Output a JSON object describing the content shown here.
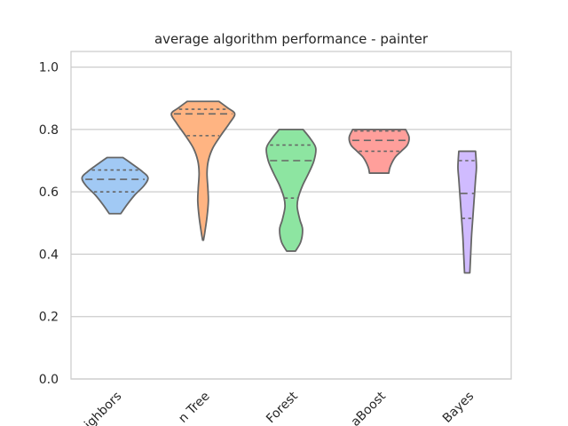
{
  "chart_data": {
    "type": "violin",
    "title": "average algorithm performance - painter",
    "xlabel": "",
    "ylabel": "",
    "ylim": [
      0,
      1.05
    ],
    "yticks": [
      "0.0",
      "0.2",
      "0.4",
      "0.6",
      "0.8",
      "1.0"
    ],
    "ytick_values": [
      0.0,
      0.2,
      0.4,
      0.6,
      0.8,
      1.0
    ],
    "grid": "horizontal",
    "categories": [
      "ighbors",
      "n Tree",
      "Forest",
      "aBoost",
      "Bayes"
    ],
    "colors": [
      "#a1c9f4",
      "#ffb482",
      "#8de5a1",
      "#ff9f9b",
      "#d0bbff"
    ],
    "edge_color": "#666666",
    "violins": [
      {
        "min": 0.53,
        "max": 0.71,
        "quartiles": [
          0.6,
          0.64,
          0.67
        ],
        "profile": [
          [
            0.53,
            0.13
          ],
          [
            0.56,
            0.28
          ],
          [
            0.59,
            0.45
          ],
          [
            0.62,
            0.66
          ],
          [
            0.645,
            0.75
          ],
          [
            0.665,
            0.62
          ],
          [
            0.69,
            0.38
          ],
          [
            0.71,
            0.18
          ]
        ]
      },
      {
        "min": 0.445,
        "max": 0.89,
        "quartiles": [
          0.78,
          0.85,
          0.865
        ],
        "profile": [
          [
            0.445,
            0.01
          ],
          [
            0.47,
            0.04
          ],
          [
            0.52,
            0.09
          ],
          [
            0.57,
            0.12
          ],
          [
            0.61,
            0.11
          ],
          [
            0.66,
            0.09
          ],
          [
            0.7,
            0.12
          ],
          [
            0.74,
            0.22
          ],
          [
            0.78,
            0.4
          ],
          [
            0.82,
            0.6
          ],
          [
            0.85,
            0.72
          ],
          [
            0.87,
            0.55
          ],
          [
            0.89,
            0.36
          ]
        ]
      },
      {
        "min": 0.41,
        "max": 0.8,
        "quartiles": [
          0.58,
          0.7,
          0.75
        ],
        "profile": [
          [
            0.41,
            0.1
          ],
          [
            0.44,
            0.22
          ],
          [
            0.48,
            0.26
          ],
          [
            0.51,
            0.2
          ],
          [
            0.55,
            0.14
          ],
          [
            0.58,
            0.16
          ],
          [
            0.62,
            0.26
          ],
          [
            0.66,
            0.4
          ],
          [
            0.7,
            0.52
          ],
          [
            0.74,
            0.56
          ],
          [
            0.77,
            0.44
          ],
          [
            0.8,
            0.27
          ]
        ]
      },
      {
        "min": 0.66,
        "max": 0.8,
        "quartiles": [
          0.73,
          0.765,
          0.795
        ],
        "profile": [
          [
            0.66,
            0.22
          ],
          [
            0.68,
            0.25
          ],
          [
            0.71,
            0.36
          ],
          [
            0.73,
            0.5
          ],
          [
            0.75,
            0.64
          ],
          [
            0.775,
            0.68
          ],
          [
            0.8,
            0.6
          ]
        ]
      },
      {
        "min": 0.34,
        "max": 0.73,
        "quartiles": [
          0.515,
          0.595,
          0.7
        ],
        "profile": [
          [
            0.34,
            0.06
          ],
          [
            0.4,
            0.08
          ],
          [
            0.46,
            0.1
          ],
          [
            0.52,
            0.13
          ],
          [
            0.58,
            0.16
          ],
          [
            0.64,
            0.19
          ],
          [
            0.68,
            0.21
          ],
          [
            0.73,
            0.19
          ]
        ]
      }
    ]
  }
}
